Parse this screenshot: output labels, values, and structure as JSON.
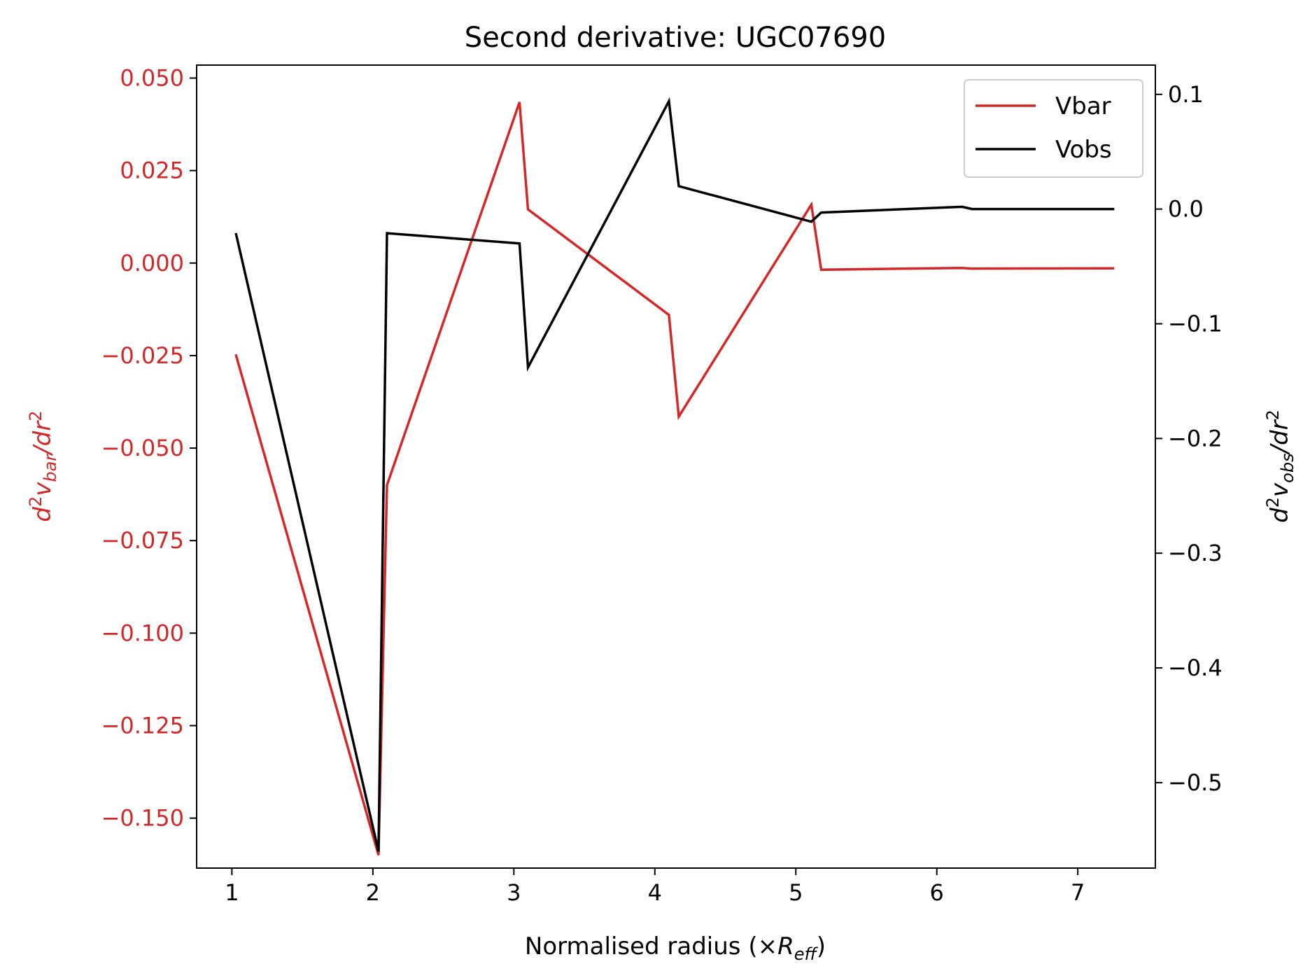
{
  "chart_data": {
    "type": "line",
    "title": "Second derivative: UGC07690",
    "xlabel": "Normalised radius (×R_eff)",
    "xlabel_parts": {
      "prefix": "Normalised radius (×",
      "var": "R",
      "sub": "eff",
      "suffix": ")"
    },
    "ylabel_left_parts": {
      "num_var": "d",
      "num_sup": "2",
      "v": "v",
      "sub": "bar",
      "slash": "/",
      "den": "dr",
      "den_sup": "2"
    },
    "ylabel_right_parts": {
      "num_var": "d",
      "num_sup": "2",
      "v": "v",
      "sub": "obs",
      "slash": "/",
      "den": "dr",
      "den_sup": "2"
    },
    "xlim": [
      0.75,
      7.55
    ],
    "ylim_left": [
      -0.1635,
      0.0535
    ],
    "ylim_right": [
      -0.5745,
      0.1255
    ],
    "x_ticks": [
      1,
      2,
      3,
      4,
      5,
      6,
      7
    ],
    "x_tick_labels": [
      "1",
      "2",
      "3",
      "4",
      "5",
      "6",
      "7"
    ],
    "y_left_ticks": [
      0.05,
      0.025,
      0.0,
      -0.025,
      -0.05,
      -0.075,
      -0.1,
      -0.125,
      -0.15
    ],
    "y_left_tick_labels": [
      "0.050",
      "0.025",
      "0.000",
      "−0.025",
      "−0.050",
      "−0.075",
      "−0.100",
      "−0.125",
      "−0.150"
    ],
    "y_right_ticks": [
      0.1,
      0.0,
      -0.1,
      -0.2,
      -0.3,
      -0.4,
      -0.5
    ],
    "y_right_tick_labels": [
      "0.1",
      "0.0",
      "−0.1",
      "−0.2",
      "−0.3",
      "−0.4",
      "−0.5"
    ],
    "legend_position": "top-right",
    "grid": false,
    "series": [
      {
        "name": "Vbar",
        "axis": "left",
        "color": "#d62728",
        "x": [
          1.03,
          2.04,
          2.1,
          3.04,
          3.1,
          4.1,
          4.17,
          5.11,
          5.18,
          6.18,
          6.25,
          7.25
        ],
        "y": [
          -0.025,
          -0.16,
          -0.06,
          0.0435,
          0.0145,
          -0.014,
          -0.0415,
          0.0158,
          -0.0018,
          -0.0013,
          -0.0015,
          -0.0014
        ]
      },
      {
        "name": "Vobs",
        "axis": "right",
        "color": "#000000",
        "x": [
          1.03,
          2.04,
          2.1,
          3.04,
          3.1,
          4.1,
          4.17,
          5.11,
          5.18,
          6.18,
          6.25,
          7.25
        ],
        "y": [
          -0.022,
          -0.56,
          -0.021,
          -0.03,
          -0.138,
          0.094,
          0.02,
          -0.011,
          -0.003,
          0.002,
          0.0,
          0.0
        ]
      }
    ]
  }
}
